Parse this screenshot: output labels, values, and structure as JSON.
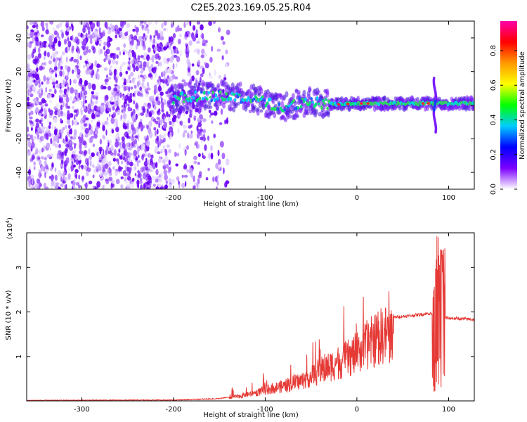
{
  "figure_title": "C2E5.2023.169.05.25.R04",
  "chart_data": [
    {
      "type": "heatmap",
      "xlabel": "Height of straight line (km)",
      "ylabel": "Frequency (Hz)",
      "xlim": [
        -360,
        128
      ],
      "ylim": [
        -50,
        50
      ],
      "x_ticks": [
        -300,
        -200,
        -100,
        0,
        100
      ],
      "x_tick_labels": [
        "-300",
        "-200",
        "-100",
        "0",
        "100"
      ],
      "y_ticks": [
        40,
        20,
        0,
        -20,
        -40
      ],
      "y_tick_labels": [
        "40",
        "20",
        "0",
        "-20",
        "-40"
      ],
      "colorbar": {
        "label": "Normalized spectral amplitude",
        "range": [
          0,
          0.97
        ],
        "ticks": [
          0.0,
          0.2,
          0.4,
          0.6,
          0.8
        ],
        "tick_labels": [
          "0.0",
          "0.2",
          "0.4",
          "0.6",
          "0.8"
        ],
        "colormap": [
          "#ffffff",
          "#7b00ff",
          "#0000ff",
          "#00ccff",
          "#00ff00",
          "#ffff00",
          "#ff9900",
          "#ff0000",
          "#ff00aa"
        ]
      },
      "features": {
        "noise_region_x": [
          -360,
          -165
        ],
        "spectral_ridge": [
          {
            "x": -200,
            "y": 4
          },
          {
            "x": -150,
            "y": 6
          },
          {
            "x": -120,
            "y": 4
          },
          {
            "x": -100,
            "y": 2
          },
          {
            "x": -80,
            "y": -2
          },
          {
            "x": -60,
            "y": 2
          },
          {
            "x": -40,
            "y": 1
          },
          {
            "x": -20,
            "y": 0.5
          },
          {
            "x": 0,
            "y": 1
          },
          {
            "x": 40,
            "y": 1
          },
          {
            "x": 80,
            "y": 1
          },
          {
            "x": 128,
            "y": 1
          }
        ],
        "feature_x": 85,
        "feature_y_range": [
          -16,
          16
        ]
      },
      "grid": false,
      "legend": "none"
    },
    {
      "type": "line",
      "xlabel": "Height of straight line (km)",
      "ylabel": "SNR (10 * v/v)",
      "y_exponent_label": "(x10",
      "y_exponent_value": "4",
      "y_exponent_close": ")",
      "xlim": [
        -360,
        128
      ],
      "ylim": [
        0,
        3.78
      ],
      "x_ticks": [
        -300,
        -200,
        -100,
        0,
        100
      ],
      "x_tick_labels": [
        "-300",
        "-200",
        "-100",
        "0",
        "100"
      ],
      "y_ticks": [
        1,
        2,
        3
      ],
      "y_tick_labels": [
        "1",
        "2",
        "3"
      ],
      "series": [
        {
          "color": "#e53935",
          "envelope": [
            {
              "x": -360,
              "y": 0.01
            },
            {
              "x": -200,
              "y": 0.02
            },
            {
              "x": -150,
              "y": 0.05
            },
            {
              "x": -130,
              "y": 0.12
            },
            {
              "x": -110,
              "y": 0.22
            },
            {
              "x": -100,
              "y": 0.3
            },
            {
              "x": -80,
              "y": 0.4
            },
            {
              "x": -60,
              "y": 0.55
            },
            {
              "x": -40,
              "y": 0.8
            },
            {
              "x": -25,
              "y": 1.0
            },
            {
              "x": -10,
              "y": 1.15
            },
            {
              "x": 0,
              "y": 1.3
            },
            {
              "x": 10,
              "y": 1.5
            },
            {
              "x": 25,
              "y": 1.75
            },
            {
              "x": 40,
              "y": 1.88
            },
            {
              "x": 60,
              "y": 1.92
            },
            {
              "x": 80,
              "y": 1.97
            },
            {
              "x": 88,
              "y": 1.9
            },
            {
              "x": 100,
              "y": 1.86
            },
            {
              "x": 128,
              "y": 1.83
            }
          ],
          "max_value": 3.75
        }
      ],
      "grid": false,
      "legend": "none"
    }
  ]
}
